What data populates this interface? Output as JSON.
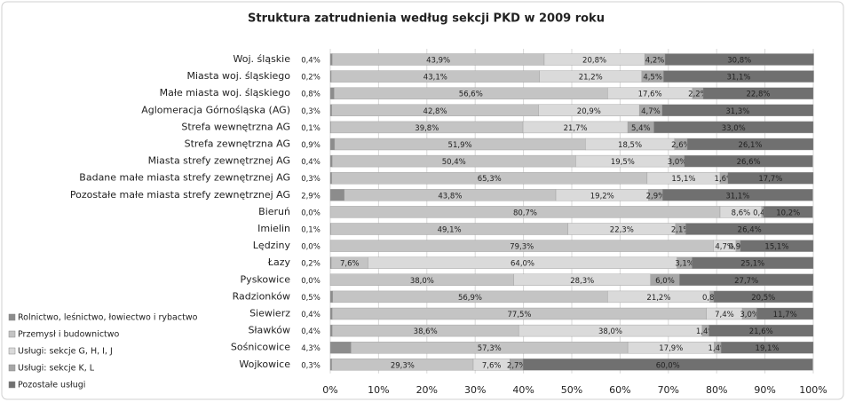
{
  "chart_data": {
    "type": "stacked_bar_horizontal",
    "title": "Struktura zatrudnienia według sekcji PKD w 2009 roku",
    "categories": [
      "Woj. śląskie",
      "Miasta woj. śląskiego",
      "Małe miasta woj. śląskiego",
      "Aglomeracja Górnośląska (AG)",
      "Strefa wewnętrzna AG",
      "Strefa zewnętrzna AG",
      "Miasta strefy zewnętrznej AG",
      "Badane małe miasta strefy zewnętrznej AG",
      "Pozostałe małe miasta strefy zewnętrznej AG",
      "Bieruń",
      "Imielin",
      "Lędziny",
      "Łazy",
      "Pyskowice",
      "Radzionków",
      "Siewierz",
      "Sławków",
      "Sośnicowice",
      "Wojkowice"
    ],
    "series": [
      {
        "name": "Rolnictwo, leśnictwo, łowiectwo i rybactwo",
        "color": "#8c8c8c",
        "values": [
          0.4,
          0.2,
          0.8,
          0.3,
          0.1,
          0.9,
          0.4,
          0.3,
          2.9,
          0.0,
          0.1,
          0.0,
          0.2,
          0.0,
          0.5,
          0.4,
          0.4,
          4.3,
          0.3
        ],
        "value_labels": [
          "0,4%",
          "0,2%",
          "0,8%",
          "0,3%",
          "0,1%",
          "0,9%",
          "0,4%",
          "0,3%",
          "2,9%",
          "0,0%",
          "0,1%",
          "0,0%",
          "0,2%",
          "0,0%",
          "0,5%",
          "0,4%",
          "0,4%",
          "4,3%",
          "0,3%"
        ]
      },
      {
        "name": "Przemysł i budownictwo",
        "color": "#c4c4c4",
        "values": [
          43.9,
          43.1,
          56.6,
          42.8,
          39.8,
          51.9,
          50.4,
          65.3,
          43.8,
          80.7,
          49.1,
          79.3,
          7.6,
          38.0,
          56.9,
          77.5,
          38.6,
          57.3,
          29.3
        ],
        "value_labels": [
          "43,9%",
          "43,1%",
          "56,6%",
          "42,8%",
          "39,8%",
          "51,9%",
          "50,4%",
          "65,3%",
          "43,8%",
          "80,7%",
          "49,1%",
          "79,3%",
          "7,6%",
          "38,0%",
          "56,9%",
          "77,5%",
          "38,6%",
          "57,3%",
          "29,3%"
        ]
      },
      {
        "name": "Usługi: sekcje G, H, I, J",
        "color": "#dadada",
        "values": [
          20.8,
          21.2,
          17.6,
          20.9,
          21.7,
          18.5,
          19.5,
          15.1,
          19.2,
          8.6,
          22.3,
          4.7,
          64.0,
          28.3,
          21.2,
          7.4,
          38.0,
          17.9,
          7.6
        ],
        "value_labels": [
          "20,8%",
          "21,2%",
          "17,6%",
          "20,9%",
          "21,7%",
          "18,5%",
          "19,5%",
          "15,1%",
          "19,2%",
          "8,6%",
          "22,3%",
          "4,7%",
          "64,0%",
          "28,3%",
          "21,2%",
          "7,4%",
          "38,0%",
          "17,9%",
          "7,6%"
        ]
      },
      {
        "name": "Usługi: sekcje K, L",
        "color": "#a6a6a6",
        "values": [
          4.2,
          4.5,
          2.2,
          4.7,
          5.4,
          2.6,
          3.0,
          1.6,
          2.9,
          0.4,
          2.1,
          0.9,
          3.1,
          6.0,
          0.8,
          3.0,
          1.4,
          1.4,
          2.7
        ],
        "value_labels": [
          "4,2%",
          "4,5%",
          "2,2%",
          "4,7%",
          "5,4%",
          "2,6%",
          "3,0%",
          "1,6%",
          "2,9%",
          "0,4%",
          "2,1%",
          "0,9%",
          "3,1%",
          "6,0%",
          "0,8%",
          "3,0%",
          "1,4%",
          "1,4%",
          "2,7%"
        ]
      },
      {
        "name": "Pozostałe usługi",
        "color": "#707070",
        "values": [
          30.8,
          31.1,
          22.8,
          31.3,
          33.0,
          26.1,
          26.6,
          17.7,
          31.1,
          10.2,
          26.4,
          15.1,
          25.1,
          27.7,
          20.5,
          11.7,
          21.6,
          19.1,
          60.0
        ],
        "value_labels": [
          "30,8%",
          "31,1%",
          "22,8%",
          "31,3%",
          "33,0%",
          "26,1%",
          "26,6%",
          "17,7%",
          "31,1%",
          "10,2%",
          "26,4%",
          "15,1%",
          "25,1%",
          "27,7%",
          "20,5%",
          "11,7%",
          "21,6%",
          "19,1%",
          "60,0%"
        ]
      }
    ],
    "xlim": [
      0,
      100
    ],
    "xticks": [
      {
        "value": 0,
        "label": "0%"
      },
      {
        "value": 10,
        "label": "10%"
      },
      {
        "value": 20,
        "label": "20%"
      },
      {
        "value": 30,
        "label": "30%"
      },
      {
        "value": 40,
        "label": "40%"
      },
      {
        "value": 50,
        "label": "50%"
      },
      {
        "value": 60,
        "label": "60%"
      },
      {
        "value": 70,
        "label": "70%"
      },
      {
        "value": 80,
        "label": "80%"
      },
      {
        "value": 90,
        "label": "90%"
      },
      {
        "value": 100,
        "label": "100%"
      }
    ],
    "grid": true,
    "legend": "bottom-left"
  }
}
